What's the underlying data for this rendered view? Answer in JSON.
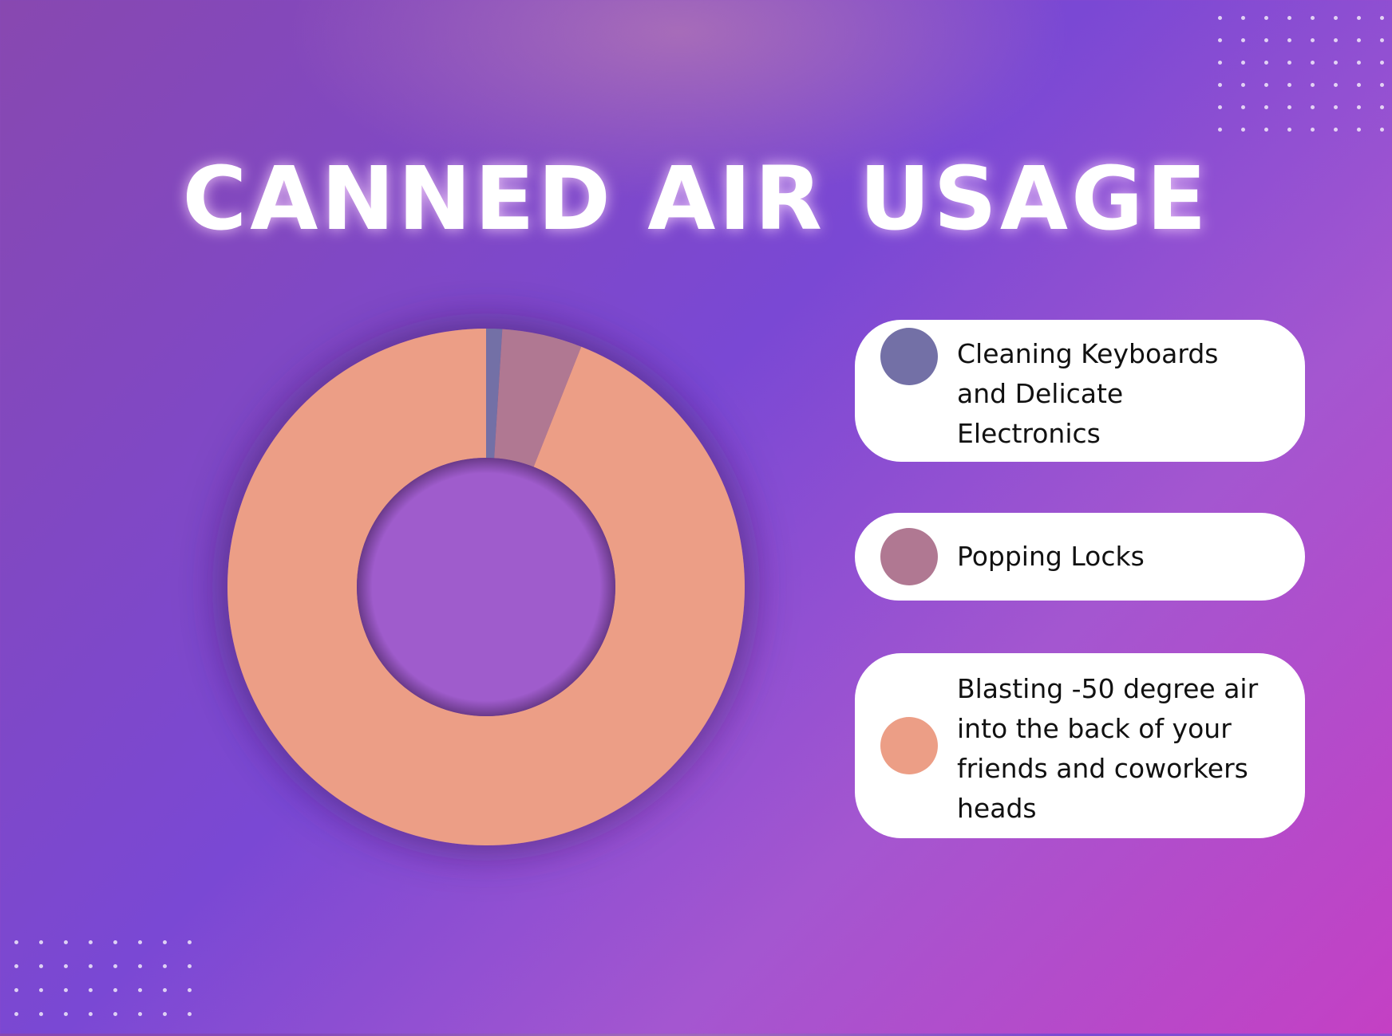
{
  "title": "CANNED AIR USAGE",
  "chart_data": {
    "type": "pie",
    "variant": "donut",
    "title": "CANNED AIR USAGE",
    "categories": [
      "Cleaning Keyboards and Delicate Electronics",
      "Popping Locks",
      "Blasting -50 degree air into the back of your friends and coworkers heads"
    ],
    "values": [
      1,
      5,
      94
    ],
    "colors": [
      "#7370a6",
      "#b07892",
      "#ec9e86"
    ],
    "legend_placement": "right"
  },
  "legend": [
    {
      "label": "Cleaning Keyboards and Delicate Electronics",
      "color": "#7370a6"
    },
    {
      "label": "Popping Locks",
      "color": "#b07892"
    },
    {
      "label": "Blasting -50 degree air into the back of your friends and coworkers heads",
      "color": "#ec9e86"
    }
  ]
}
